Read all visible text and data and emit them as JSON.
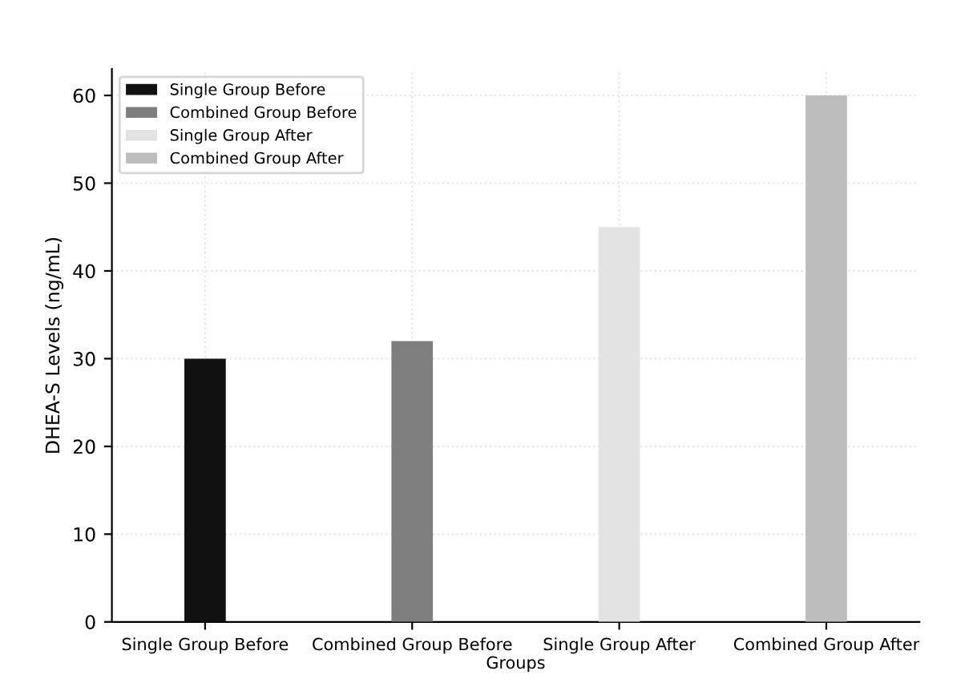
{
  "chart_data": {
    "type": "bar",
    "xlabel": "Groups",
    "ylabel": "DHEA-S Levels (ng/mL)",
    "categories": [
      "Single Group Before",
      "Combined Group Before",
      "Single Group After",
      "Combined Group After"
    ],
    "series": [
      {
        "name": "Single Group Before",
        "color": "#111111",
        "values": [
          30,
          null,
          null,
          null
        ]
      },
      {
        "name": "Combined Group Before",
        "color": "#7f7f7f",
        "values": [
          null,
          32,
          null,
          null
        ]
      },
      {
        "name": "Single Group After",
        "color": "#e3e3e3",
        "values": [
          null,
          null,
          45,
          null
        ]
      },
      {
        "name": "Combined Group After",
        "color": "#bdbdbd",
        "values": [
          null,
          null,
          null,
          60
        ]
      }
    ],
    "ylim": [
      0,
      63
    ],
    "yticks": [
      0,
      10,
      20,
      30,
      40,
      50,
      60
    ],
    "grid": true,
    "legend": "top left"
  }
}
